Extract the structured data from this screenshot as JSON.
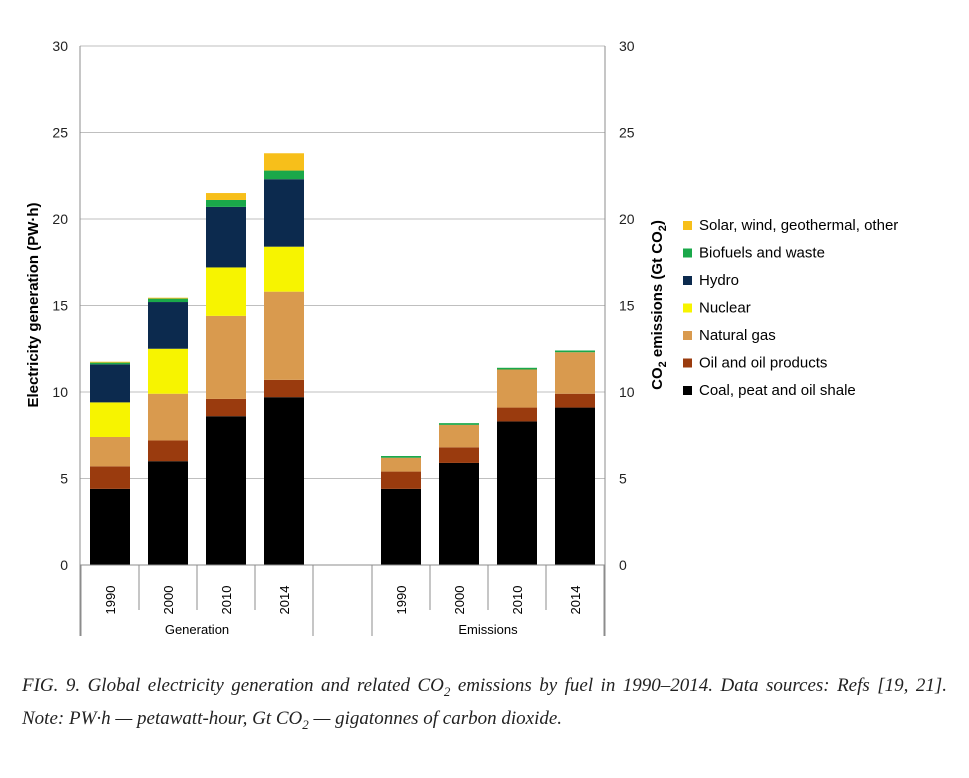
{
  "chart_data": {
    "type": "bar",
    "stacked": true,
    "series_names": [
      "Solar, wind, geothermal, other",
      "Biofuels and waste",
      "Hydro",
      "Nuclear",
      "Natural gas",
      "Oil and oil products",
      "Coal, peat and oil shale"
    ],
    "colors": {
      "Coal, peat and oil shale": "#000000",
      "Oil and oil products": "#9a3b0e",
      "Natural gas": "#d99a4e",
      "Nuclear": "#f7f400",
      "Hydro": "#0c2a4e",
      "Biofuels and waste": "#1aa84a",
      "Solar, wind, geothermal, other": "#f7bf1a"
    },
    "groups": [
      {
        "name": "Generation",
        "axis": "left",
        "categories": [
          "1990",
          "2000",
          "2010",
          "2014"
        ],
        "series": [
          {
            "name": "Coal, peat and oil shale",
            "values": [
              4.4,
              6.0,
              8.6,
              9.7
            ]
          },
          {
            "name": "Oil and oil products",
            "values": [
              1.3,
              1.2,
              1.0,
              1.0
            ]
          },
          {
            "name": "Natural gas",
            "values": [
              1.7,
              2.7,
              4.8,
              5.1
            ]
          },
          {
            "name": "Nuclear",
            "values": [
              2.0,
              2.6,
              2.8,
              2.6
            ]
          },
          {
            "name": "Hydro",
            "values": [
              2.2,
              2.7,
              3.5,
              3.9
            ]
          },
          {
            "name": "Biofuels and waste",
            "values": [
              0.1,
              0.2,
              0.4,
              0.5
            ]
          },
          {
            "name": "Solar, wind, geothermal, other",
            "values": [
              0.05,
              0.05,
              0.4,
              1.0
            ]
          }
        ]
      },
      {
        "name": "Emissions",
        "axis": "right",
        "categories": [
          "1990",
          "2000",
          "2010",
          "2014"
        ],
        "series": [
          {
            "name": "Coal, peat and oil shale",
            "values": [
              4.4,
              5.9,
              8.3,
              9.1
            ]
          },
          {
            "name": "Oil and oil products",
            "values": [
              1.0,
              0.9,
              0.8,
              0.8
            ]
          },
          {
            "name": "Natural gas",
            "values": [
              0.8,
              1.3,
              2.2,
              2.4
            ]
          },
          {
            "name": "Nuclear",
            "values": [
              0,
              0,
              0,
              0
            ]
          },
          {
            "name": "Hydro",
            "values": [
              0,
              0,
              0,
              0
            ]
          },
          {
            "name": "Biofuels and waste",
            "values": [
              0.1,
              0.1,
              0.1,
              0.1
            ]
          },
          {
            "name": "Solar, wind, geothermal, other",
            "values": [
              0,
              0,
              0,
              0
            ]
          }
        ]
      }
    ],
    "y_left": {
      "label": "Electricity generation (PW·h)",
      "lim": [
        0,
        30
      ],
      "ticks": [
        0,
        5,
        10,
        15,
        20,
        25,
        30
      ]
    },
    "y_right": {
      "label_main": "CO",
      "label_sub": "2",
      "label_rest": " emissions (Gt CO",
      "label_sub2": "2",
      "label_end": ")",
      "lim": [
        0,
        30
      ],
      "ticks": [
        0,
        5,
        10,
        15,
        20,
        25,
        30
      ]
    },
    "grid": true,
    "legend_position": "right"
  },
  "caption": {
    "part1": "FIG. 9.  Global electricity generation and related CO",
    "sub1": "2",
    "part2": " emissions by fuel in 1990–2014. Data sources: Refs [19, 21]. Note: PW·h — petawatt-hour, Gt CO",
    "sub2": "2",
    "part3": " — gigatonnes of carbon dioxide."
  }
}
